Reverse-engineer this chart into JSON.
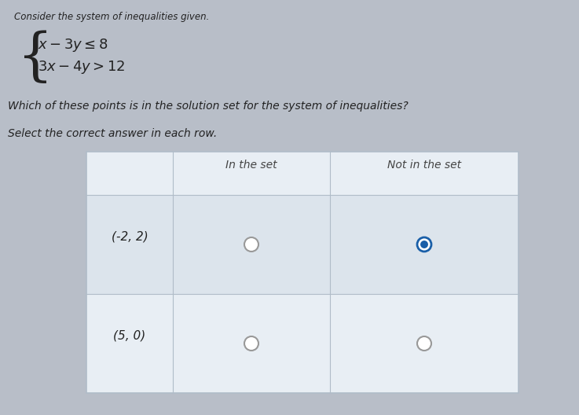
{
  "bg_color": "#b8bec8",
  "title_line": "Consider the system of inequalities given.",
  "question": "Which of these points is in the solution set for the system of inequalities?",
  "instruction": "Select the correct answer in each row.",
  "col_headers": [
    "In the set",
    "Not in the set"
  ],
  "rows": [
    {
      "label": "(-2, 2)",
      "in_set_selected": false,
      "not_in_set_selected": true
    },
    {
      "label": "(5, 0)",
      "in_set_selected": false,
      "not_in_set_selected": false
    }
  ],
  "table_bg_header": "#e8eef4",
  "table_bg_row0": "#dce4ec",
  "table_bg_row1": "#e8eef4",
  "border_color": "#b0bcc8",
  "radio_empty_edge": "#999999",
  "radio_selected_edge": "#1a5fa8",
  "radio_selected_fill": "#1a5fa8",
  "text_color": "#222222",
  "header_text_color": "#444444"
}
